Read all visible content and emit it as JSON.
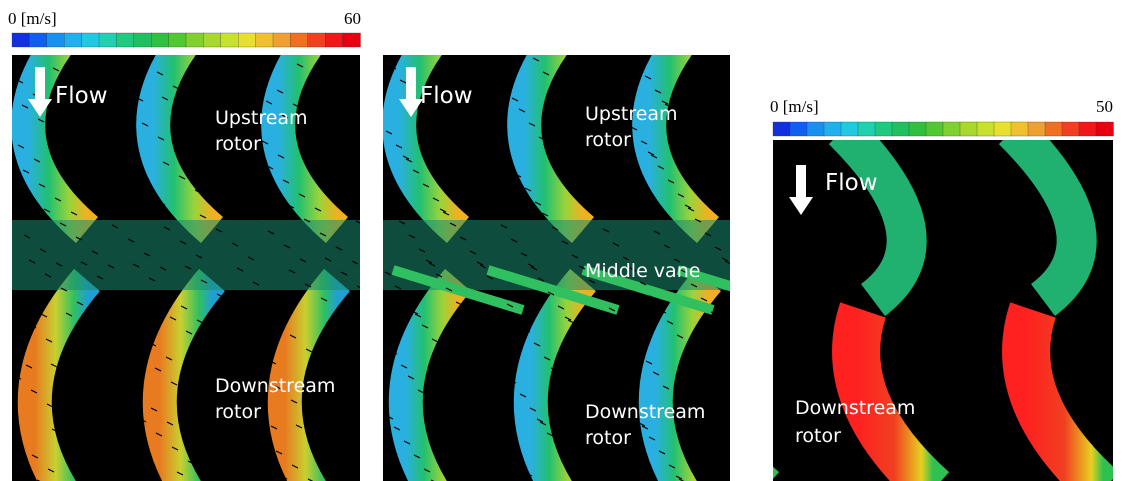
{
  "colorbars": [
    {
      "min_label": "0 [m/s]",
      "max_label": "60"
    },
    {
      "min_label": "0 [m/s]",
      "max_label": "50"
    }
  ],
  "panels": [
    {
      "flow": "Flow",
      "labels": [
        {
          "lines": [
            "Upstream",
            "rotor"
          ]
        },
        {
          "lines": [
            "Downstream",
            "rotor"
          ]
        }
      ]
    },
    {
      "flow": "Flow",
      "labels": [
        {
          "lines": [
            "Upstream",
            "rotor"
          ]
        },
        {
          "lines": [
            "Middle vane"
          ]
        },
        {
          "lines": [
            "Downstream",
            "rotor"
          ]
        }
      ]
    },
    {
      "flow": "Flow",
      "labels": [
        {
          "lines": [
            "Downstream",
            "rotor"
          ]
        }
      ]
    }
  ]
}
